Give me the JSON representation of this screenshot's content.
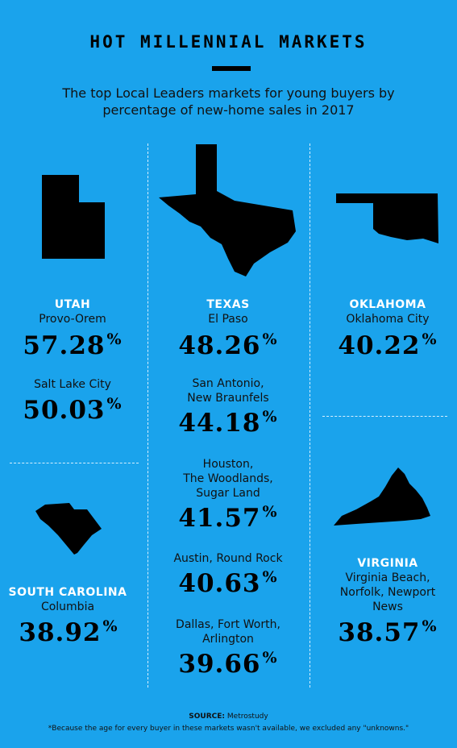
{
  "header": {
    "title": "HOT MILLENNIAL MARKETS",
    "subtitle": "The top Local Leaders markets for young buyers by percentage of new-home sales in 2017"
  },
  "chart_data": {
    "type": "table",
    "unit": "%",
    "states": [
      {
        "state": "UTAH",
        "icon": "utah-map-icon",
        "markets": [
          {
            "market": "Provo-Orem",
            "value": "57.28"
          },
          {
            "market": "Salt Lake City",
            "value": "50.03"
          }
        ]
      },
      {
        "state": "TEXAS",
        "icon": "texas-map-icon",
        "markets": [
          {
            "market": "El Paso",
            "value": "48.26"
          },
          {
            "market": "San Antonio,\nNew Braunfels",
            "value": "44.18"
          },
          {
            "market": "Houston,\nThe Woodlands,\nSugar Land",
            "value": "41.57"
          },
          {
            "market": "Austin, Round Rock",
            "value": "40.63"
          },
          {
            "market": "Dallas, Fort Worth,\nArlington",
            "value": "39.66"
          }
        ]
      },
      {
        "state": "OKLAHOMA",
        "icon": "oklahoma-map-icon",
        "markets": [
          {
            "market": "Oklahoma City",
            "value": "40.22"
          }
        ]
      },
      {
        "state": "SOUTH CAROLINA",
        "icon": "south-carolina-map-icon",
        "markets": [
          {
            "market": "Columbia",
            "value": "38.92"
          }
        ]
      },
      {
        "state": "VIRGINIA",
        "icon": "virginia-map-icon",
        "markets": [
          {
            "market": "Virginia Beach,\nNorfolk, Newport\nNews",
            "value": "38.57"
          }
        ]
      }
    ]
  },
  "footer": {
    "source_label": "SOURCE:",
    "source_value": "Metrostudy",
    "note": "*Because the age for every buyer in these markets wasn't available, we excluded any \"unknowns.\""
  },
  "colors": {
    "background": "#1aa3ec",
    "state_label": "#ffffff",
    "ink": "#000000"
  }
}
